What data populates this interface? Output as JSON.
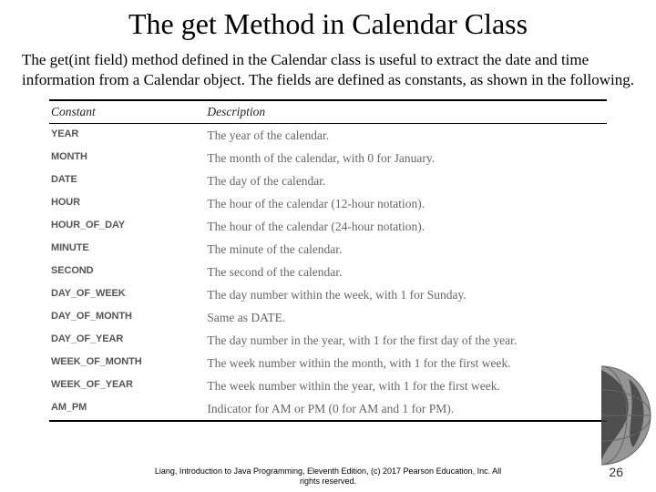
{
  "title": "The get Method in Calendar Class",
  "paragraph": "The get(int field) method defined in the Calendar class is useful to extract the date and time information from a Calendar object. The fields are defined as constants, as shown in the following.",
  "table": {
    "columns": [
      "Constant",
      "Description"
    ],
    "rows": [
      [
        "YEAR",
        "The year of the calendar."
      ],
      [
        "MONTH",
        "The month of the calendar, with 0 for January."
      ],
      [
        "DATE",
        "The day of the calendar."
      ],
      [
        "HOUR",
        "The hour of the calendar (12-hour notation)."
      ],
      [
        "HOUR_OF_DAY",
        "The hour of the calendar (24-hour notation)."
      ],
      [
        "MINUTE",
        "The minute of the calendar."
      ],
      [
        "SECOND",
        "The second of the calendar."
      ],
      [
        "DAY_OF_WEEK",
        "The day number within the week, with 1 for Sunday."
      ],
      [
        "DAY_OF_MONTH",
        "Same as DATE."
      ],
      [
        "DAY_OF_YEAR",
        "The day number in the year, with 1 for the first day of the year."
      ],
      [
        "WEEK_OF_MONTH",
        "The week number within the month, with 1 for the first week."
      ],
      [
        "WEEK_OF_YEAR",
        "The week number within the year, with 1 for the first week."
      ],
      [
        "AM_PM",
        "Indicator for AM or PM (0 for AM and 1 for PM)."
      ]
    ]
  },
  "footer_line1": "Liang, Introduction to Java Programming, Eleventh Edition, (c) 2017 Pearson Education, Inc. All",
  "footer_line2": "rights reserved.",
  "page_number": "26",
  "colors": {
    "const_text": "#555555",
    "desc_text": "#666666",
    "rule": "#000000",
    "background": "#ffffff"
  },
  "globe_icon": "globe-icon"
}
